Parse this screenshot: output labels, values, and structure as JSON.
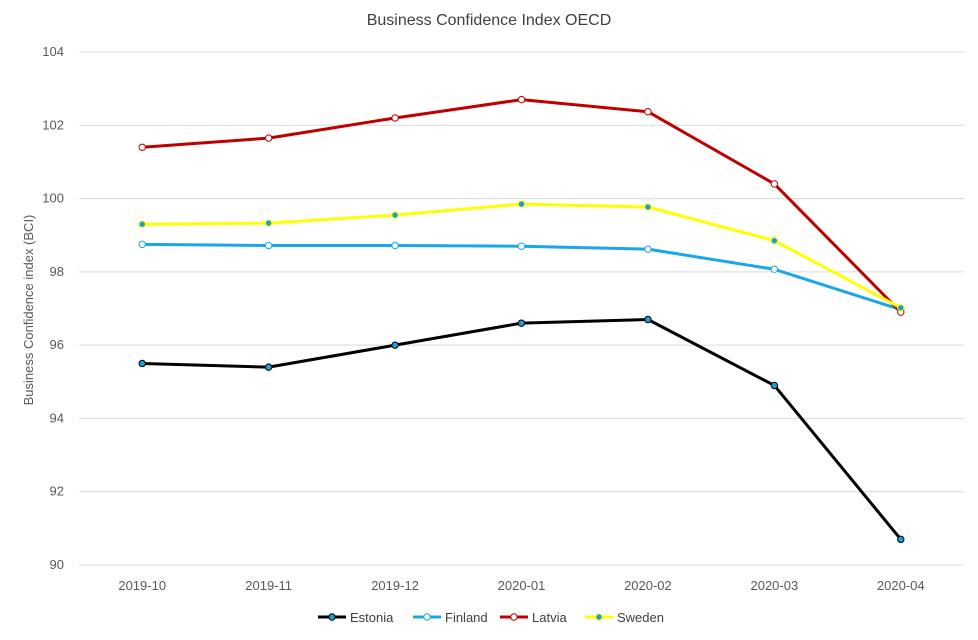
{
  "chart_data": {
    "type": "line",
    "title": "Business Confidence  Index OECD",
    "xlabel": "",
    "ylabel": "Business Confidence index (BCI)",
    "categories": [
      "2019-10",
      "2019-11",
      "2019-12",
      "2020-01",
      "2020-02",
      "2020-03",
      "2020-04"
    ],
    "ylim": [
      90,
      104
    ],
    "yticks": [
      90,
      92,
      94,
      96,
      98,
      100,
      102,
      104
    ],
    "grid": true,
    "legend_position": "bottom",
    "series": [
      {
        "name": "Estonia",
        "color": "#000000",
        "marker_fill": "#1f9bd7",
        "values": [
          95.5,
          95.4,
          96.0,
          96.6,
          96.7,
          94.9,
          90.7
        ]
      },
      {
        "name": "Finland",
        "color": "#1aa7e8",
        "marker_fill": "#ffffff",
        "values": [
          98.75,
          98.72,
          98.72,
          98.7,
          98.62,
          98.07,
          96.97
        ]
      },
      {
        "name": "Latvia",
        "color": "#c00000",
        "marker_fill": "#ffffff",
        "values": [
          101.4,
          101.65,
          102.2,
          102.7,
          102.37,
          100.4,
          96.9
        ]
      },
      {
        "name": "Sweden",
        "color": "#ffff00",
        "marker_fill": "#1f9bd7",
        "values": [
          99.3,
          99.33,
          99.55,
          99.85,
          99.77,
          98.85,
          97.02
        ]
      }
    ]
  }
}
